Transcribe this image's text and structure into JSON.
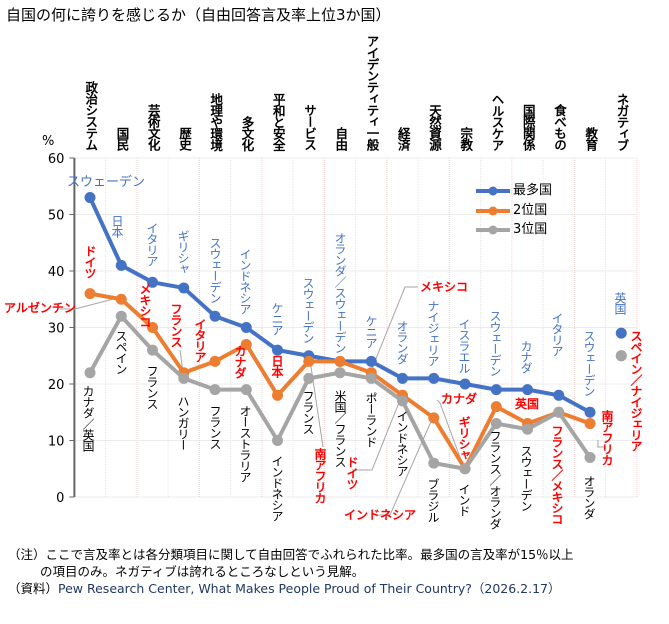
{
  "title": "自国の何に誇りを感じるか（自由回答言及率上位3か国）",
  "chart_data": {
    "type": "line",
    "ylabel": "%",
    "ylim": [
      0,
      60
    ],
    "yticks": [
      "0",
      "10",
      "20",
      "30",
      "40",
      "50",
      "60"
    ],
    "grid": true,
    "legend_position": "top-right",
    "categories": [
      "政治システム",
      "国民",
      "芸術文化",
      "歴史",
      "地理や環境",
      "多文化",
      "平和と安全",
      "サービス",
      "自由",
      "アイデンティティ一般",
      "経済",
      "天然資源",
      "宗教",
      "ヘルスケア",
      "国際関係",
      "食べもの",
      "教育",
      "ネガティブ"
    ],
    "series": [
      {
        "name": "最多国",
        "color": "#4472c4",
        "values": [
          53,
          41,
          38,
          37,
          32,
          30,
          26,
          25,
          24,
          24,
          21,
          21,
          20,
          19,
          19,
          18,
          15,
          29
        ],
        "labels": [
          "スウェーデン",
          "日本",
          "イタリア",
          "ギリシャ",
          "スウェーデン",
          "インドネシア",
          "ケニア",
          "スウェーデン",
          "オランダ／スウェーデン",
          "ケニア",
          "オランダ",
          "ナイジェリア",
          "イスラエル",
          "スウェーデン",
          "カナダ",
          "イタリア",
          "スウェーデン",
          "英国"
        ]
      },
      {
        "name": "2位国",
        "color": "#ed7d31",
        "values": [
          36,
          35,
          30,
          22,
          24,
          27,
          18,
          24,
          24,
          22,
          18,
          14,
          5,
          16,
          13,
          15,
          13,
          25
        ],
        "labels": [
          "ドイツ",
          "アルゼンチン",
          "メキシコ",
          "フランス",
          "イタリア",
          "カナダ",
          "日本",
          "南アフリカ",
          "",
          "メキシコ",
          "ドイツ",
          "インドネシア",
          "ギリシャ",
          "カナダ",
          "英国",
          "フランス／メキシコ",
          "南アフリカ",
          "スペイン／ナイジェリア"
        ]
      },
      {
        "name": "3位国",
        "color": "#a5a5a5",
        "values": [
          22,
          32,
          26,
          21,
          19,
          19,
          10,
          21,
          22,
          21,
          17,
          6,
          5,
          13,
          12,
          15,
          7,
          25
        ],
        "labels": [
          "カナダ／英国",
          "スペイン",
          "フランス",
          "ハンガリー",
          "フランス",
          "オーストラリア",
          "インドネシア",
          "フランス",
          "米国／フランス",
          "ポーランド",
          "インドネシア",
          "ブラジル",
          "インド",
          "フランス／オランダ",
          "スウェーデン",
          "",
          "オランダ",
          ""
        ]
      }
    ]
  },
  "notes": {
    "note1": "（注）ここで言及率とは各分類項目に関して自由回答でふれられた比率。最多国の言及率が15％以上",
    "note2": "の項目のみ。ネガティブは誇れるところなしという見解。",
    "source_prefix": "（資料）",
    "source": "Pew Research Center, What Makes People Proud of Their Country?（2026.2.17）"
  }
}
